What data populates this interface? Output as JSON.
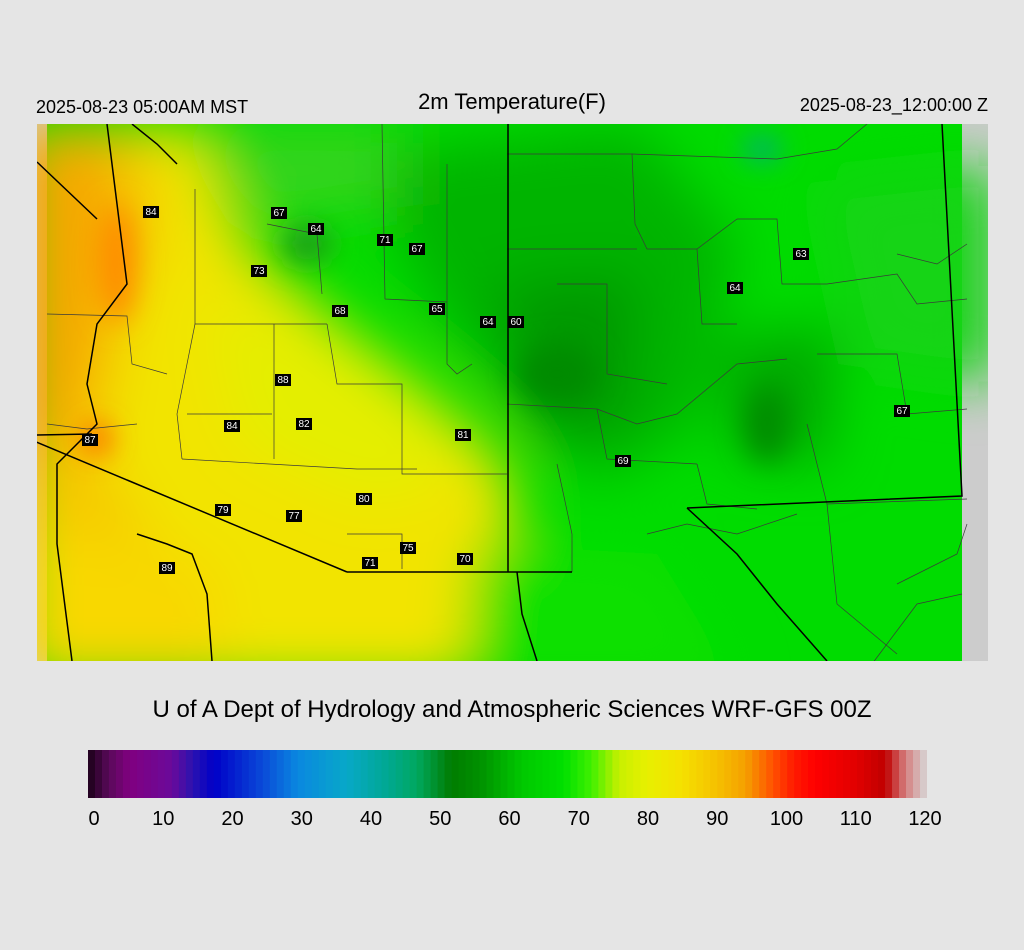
{
  "header": {
    "valid_local": "2025-08-23 05:00AM MST",
    "title": "2m Temperature(F)",
    "valid_utc": "2025-08-23_12:00:00 Z"
  },
  "credit": "U of A Dept of Hydrology and Atmospheric Sciences WRF-GFS 00Z",
  "colorbar": {
    "min": 0,
    "max": 120,
    "ticks": [
      "0",
      "10",
      "20",
      "30",
      "40",
      "50",
      "60",
      "70",
      "80",
      "90",
      "100",
      "110",
      "120"
    ],
    "stops": [
      {
        "value": 0,
        "color": "#1a0018"
      },
      {
        "value": 3,
        "color": "#5a0a5a"
      },
      {
        "value": 6,
        "color": "#800080"
      },
      {
        "value": 12,
        "color": "#6a0a9a"
      },
      {
        "value": 15,
        "color": "#2a12b0"
      },
      {
        "value": 18,
        "color": "#0000c8"
      },
      {
        "value": 25,
        "color": "#0a4ad8"
      },
      {
        "value": 30,
        "color": "#0a88e0"
      },
      {
        "value": 37,
        "color": "#08a8c8"
      },
      {
        "value": 43,
        "color": "#00a890"
      },
      {
        "value": 47,
        "color": "#00a860"
      },
      {
        "value": 52,
        "color": "#007c00"
      },
      {
        "value": 56,
        "color": "#009000"
      },
      {
        "value": 62,
        "color": "#00c800"
      },
      {
        "value": 68,
        "color": "#00e000"
      },
      {
        "value": 72,
        "color": "#40f000"
      },
      {
        "value": 76,
        "color": "#c8f000"
      },
      {
        "value": 80,
        "color": "#e8f000"
      },
      {
        "value": 85,
        "color": "#f5e000"
      },
      {
        "value": 90,
        "color": "#f5c000"
      },
      {
        "value": 94,
        "color": "#f5a000"
      },
      {
        "value": 98,
        "color": "#ff5000"
      },
      {
        "value": 101,
        "color": "#ff1a00"
      },
      {
        "value": 104,
        "color": "#ff0000"
      },
      {
        "value": 110,
        "color": "#e00000"
      },
      {
        "value": 114,
        "color": "#c00000"
      },
      {
        "value": 117,
        "color": "#d48080"
      },
      {
        "value": 120,
        "color": "#d8d8d8"
      }
    ]
  },
  "station_labels": [
    {
      "value": "84"
    },
    {
      "value": "67"
    },
    {
      "value": "64"
    },
    {
      "value": "71"
    },
    {
      "value": "67"
    },
    {
      "value": "73"
    },
    {
      "value": "63"
    },
    {
      "value": "64"
    },
    {
      "value": "68"
    },
    {
      "value": "65"
    },
    {
      "value": "64"
    },
    {
      "value": "60"
    },
    {
      "value": "88"
    },
    {
      "value": "84"
    },
    {
      "value": "82"
    },
    {
      "value": "81"
    },
    {
      "value": "87"
    },
    {
      "value": "67"
    },
    {
      "value": "69"
    },
    {
      "value": "80"
    },
    {
      "value": "79"
    },
    {
      "value": "77"
    },
    {
      "value": "75"
    },
    {
      "value": "71"
    },
    {
      "value": "70"
    },
    {
      "value": "89"
    }
  ]
}
